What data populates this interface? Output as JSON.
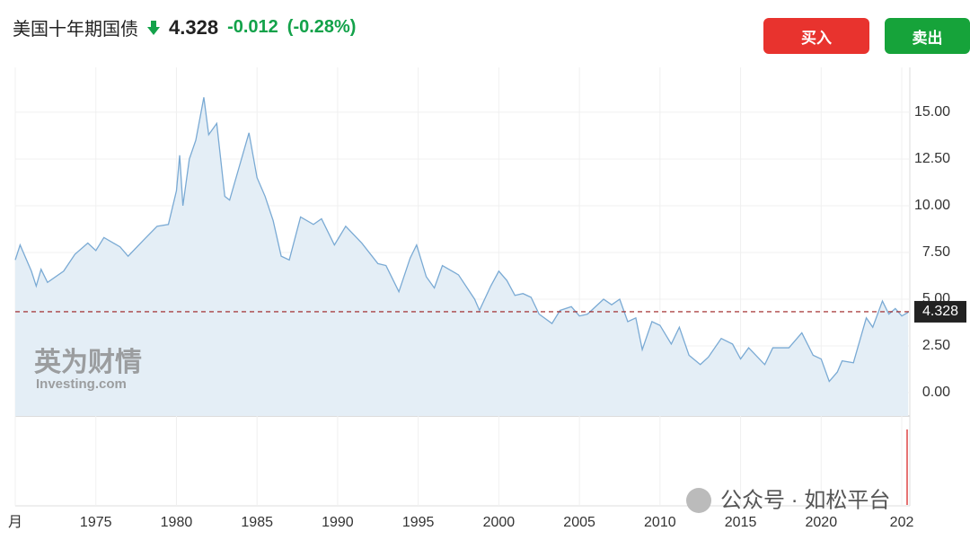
{
  "header": {
    "title": "美国十年期国债",
    "price": "4.328",
    "change": "-0.012",
    "change_pct": "(-0.28%)",
    "buy": "买入",
    "sell": "卖出"
  },
  "watermark": {
    "brand": "英为财情",
    "site": "Investing.com",
    "account": "公众号 · 如松平台"
  },
  "chart_data": {
    "type": "area",
    "x": [
      1970.0,
      1970.3,
      1971.0,
      1971.3,
      1971.6,
      1972.0,
      1973.0,
      1973.7,
      1974.5,
      1975.0,
      1975.5,
      1976.5,
      1977.0,
      1978.0,
      1978.8,
      1979.5,
      1980.0,
      1980.2,
      1980.4,
      1980.8,
      1981.2,
      1981.7,
      1982.0,
      1982.5,
      1983.0,
      1983.3,
      1983.8,
      1984.5,
      1985.0,
      1985.5,
      1986.0,
      1986.5,
      1987.0,
      1987.7,
      1988.5,
      1989.0,
      1989.8,
      1990.5,
      1991.5,
      1992.5,
      1993.0,
      1993.8,
      1994.5,
      1994.9,
      1995.5,
      1996.0,
      1996.5,
      1997.5,
      1998.5,
      1998.8,
      1999.5,
      2000.0,
      2000.5,
      2001.0,
      2001.5,
      2002.0,
      2002.5,
      2003.3,
      2003.8,
      2004.5,
      2005.0,
      2005.5,
      2006.5,
      2007.0,
      2007.5,
      2008.0,
      2008.5,
      2008.9,
      2009.5,
      2010.0,
      2010.7,
      2011.2,
      2011.8,
      2012.5,
      2013.0,
      2013.8,
      2014.5,
      2015.0,
      2015.5,
      2016.5,
      2017.0,
      2018.0,
      2018.8,
      2019.5,
      2020.0,
      2020.5,
      2021.0,
      2021.3,
      2022.0,
      2022.8,
      2023.2,
      2023.8,
      2024.2,
      2024.6,
      2025.0,
      2025.4
    ],
    "series": [
      {
        "color": "#7aaad4",
        "values": [
          7.1,
          7.9,
          6.5,
          5.7,
          6.6,
          5.9,
          6.5,
          7.4,
          8.0,
          7.6,
          8.3,
          7.8,
          7.3,
          8.2,
          8.9,
          9.0,
          10.8,
          12.7,
          10.0,
          12.5,
          13.5,
          15.8,
          13.8,
          14.4,
          10.5,
          10.3,
          11.8,
          13.9,
          11.5,
          10.5,
          9.2,
          7.3,
          7.1,
          9.4,
          9.0,
          9.3,
          7.9,
          8.9,
          8.0,
          6.9,
          6.8,
          5.4,
          7.2,
          7.9,
          6.2,
          5.6,
          6.8,
          6.3,
          5.0,
          4.4,
          5.7,
          6.5,
          6.0,
          5.2,
          5.3,
          5.1,
          4.2,
          3.7,
          4.4,
          4.6,
          4.1,
          4.2,
          5.0,
          4.7,
          5.0,
          3.8,
          4.0,
          2.3,
          3.8,
          3.6,
          2.6,
          3.5,
          2.0,
          1.5,
          1.9,
          2.9,
          2.6,
          1.8,
          2.4,
          1.5,
          2.4,
          2.4,
          3.2,
          2.0,
          1.8,
          0.6,
          1.1,
          1.7,
          1.6,
          4.0,
          3.5,
          4.9,
          4.2,
          4.5,
          4.1,
          4.3
        ]
      }
    ],
    "reference_value": 4.328,
    "reference_color": "#9b1c1c",
    "area_color": "#e4eef6",
    "xlim": [
      1970,
      2025.5
    ],
    "ylim": [
      -1.25,
      17.4
    ],
    "xticks": [
      {
        "value": 1970,
        "label": "月"
      },
      1975,
      1980,
      1985,
      1990,
      1995,
      2000,
      2005,
      2010,
      2015,
      2020,
      {
        "value": 2025,
        "label": "202"
      }
    ],
    "yticks": [
      {
        "value": 0,
        "label": "0.00"
      },
      {
        "value": 2.5,
        "label": "2.50"
      },
      {
        "value": 5,
        "label": "5.00"
      },
      {
        "value": 7.5,
        "label": "7.50"
      },
      {
        "value": 10,
        "label": "10.00"
      },
      {
        "value": 12.5,
        "label": "12.50"
      },
      {
        "value": 15,
        "label": "15.00"
      }
    ],
    "grid": true
  }
}
